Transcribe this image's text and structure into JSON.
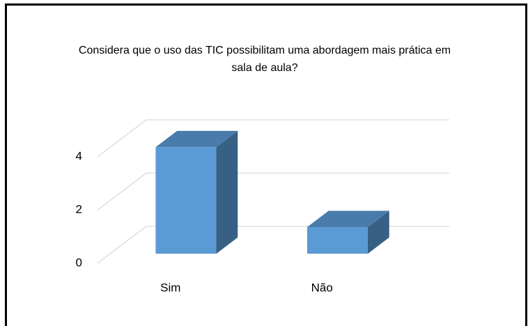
{
  "chart_data": {
    "type": "bar3d",
    "title": "Considera que o uso das TIC possibilitam uma abordagem mais prática em sala de aula?",
    "categories": [
      "Sim",
      "Não"
    ],
    "values": [
      4,
      1
    ],
    "color": "#5b9bd5",
    "ylim": [
      0,
      4
    ],
    "yticks": [
      0,
      2,
      4
    ],
    "grid": true
  }
}
